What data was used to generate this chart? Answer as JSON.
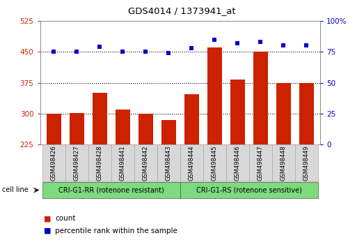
{
  "title": "GDS4014 / 1373941_at",
  "samples": [
    "GSM498426",
    "GSM498427",
    "GSM498428",
    "GSM498441",
    "GSM498442",
    "GSM498443",
    "GSM498444",
    "GSM498445",
    "GSM498446",
    "GSM498447",
    "GSM498448",
    "GSM498449"
  ],
  "counts": [
    300,
    301,
    350,
    310,
    299,
    285,
    348,
    460,
    383,
    450,
    375,
    375
  ],
  "percentiles": [
    75,
    75,
    79,
    75,
    75,
    74,
    78,
    85,
    82,
    83,
    80,
    80
  ],
  "ylim_left": [
    225,
    525
  ],
  "ylim_right": [
    0,
    100
  ],
  "yticks_left": [
    225,
    300,
    375,
    450,
    525
  ],
  "yticks_right": [
    0,
    25,
    50,
    75,
    100
  ],
  "bar_color": "#cc2200",
  "dot_color": "#0000cc",
  "grid_color": "#000000",
  "group1_label": "CRI-G1-RR (rotenone resistant)",
  "group2_label": "CRI-G1-RS (rotenone sensitive)",
  "group1_color": "#7dda7d",
  "group2_color": "#7dda7d",
  "group1_count": 6,
  "cell_line_label": "cell line",
  "legend_count_label": "count",
  "legend_pct_label": "percentile rank within the sample",
  "left_color": "#cc2200",
  "right_color": "#0000cc",
  "label_bg": "#d8d8d8",
  "plot_bg": "#ffffff",
  "hgrid_values": [
    300,
    375,
    450
  ]
}
